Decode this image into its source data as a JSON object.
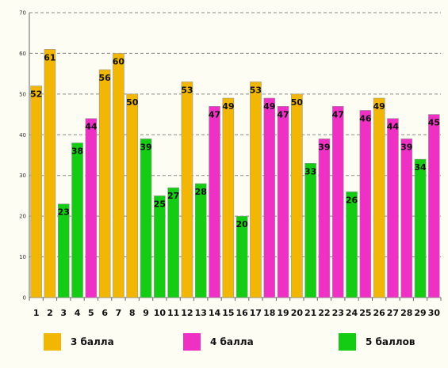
{
  "chart_data": {
    "type": "bar",
    "categories": [
      "1",
      "2",
      "3",
      "4",
      "5",
      "6",
      "7",
      "8",
      "9",
      "10",
      "11",
      "12",
      "13",
      "14",
      "15",
      "16",
      "17",
      "18",
      "19",
      "20",
      "21",
      "22",
      "23",
      "24",
      "25",
      "26",
      "27",
      "28",
      "29",
      "30"
    ],
    "values": [
      52,
      61,
      23,
      38,
      44,
      56,
      60,
      50,
      39,
      25,
      27,
      53,
      28,
      47,
      49,
      20,
      53,
      49,
      47,
      50,
      33,
      39,
      47,
      26,
      46,
      49,
      44,
      39,
      34,
      45
    ],
    "groups": [
      3,
      3,
      5,
      5,
      4,
      3,
      3,
      3,
      5,
      5,
      5,
      3,
      5,
      4,
      3,
      5,
      3,
      4,
      4,
      3,
      5,
      4,
      4,
      5,
      4,
      3,
      4,
      4,
      5,
      4
    ],
    "ylim": [
      0,
      70
    ],
    "yticks": [
      0,
      10,
      20,
      30,
      40,
      50,
      60,
      70
    ],
    "grid": true,
    "legend_position": "bottom",
    "legend": [
      {
        "group": 3,
        "label": "3 балла",
        "color": "#f2b705"
      },
      {
        "group": 4,
        "label": "4 балла",
        "color": "#ee30c5"
      },
      {
        "group": 5,
        "label": "5 баллов",
        "color": "#14cc14"
      }
    ]
  }
}
